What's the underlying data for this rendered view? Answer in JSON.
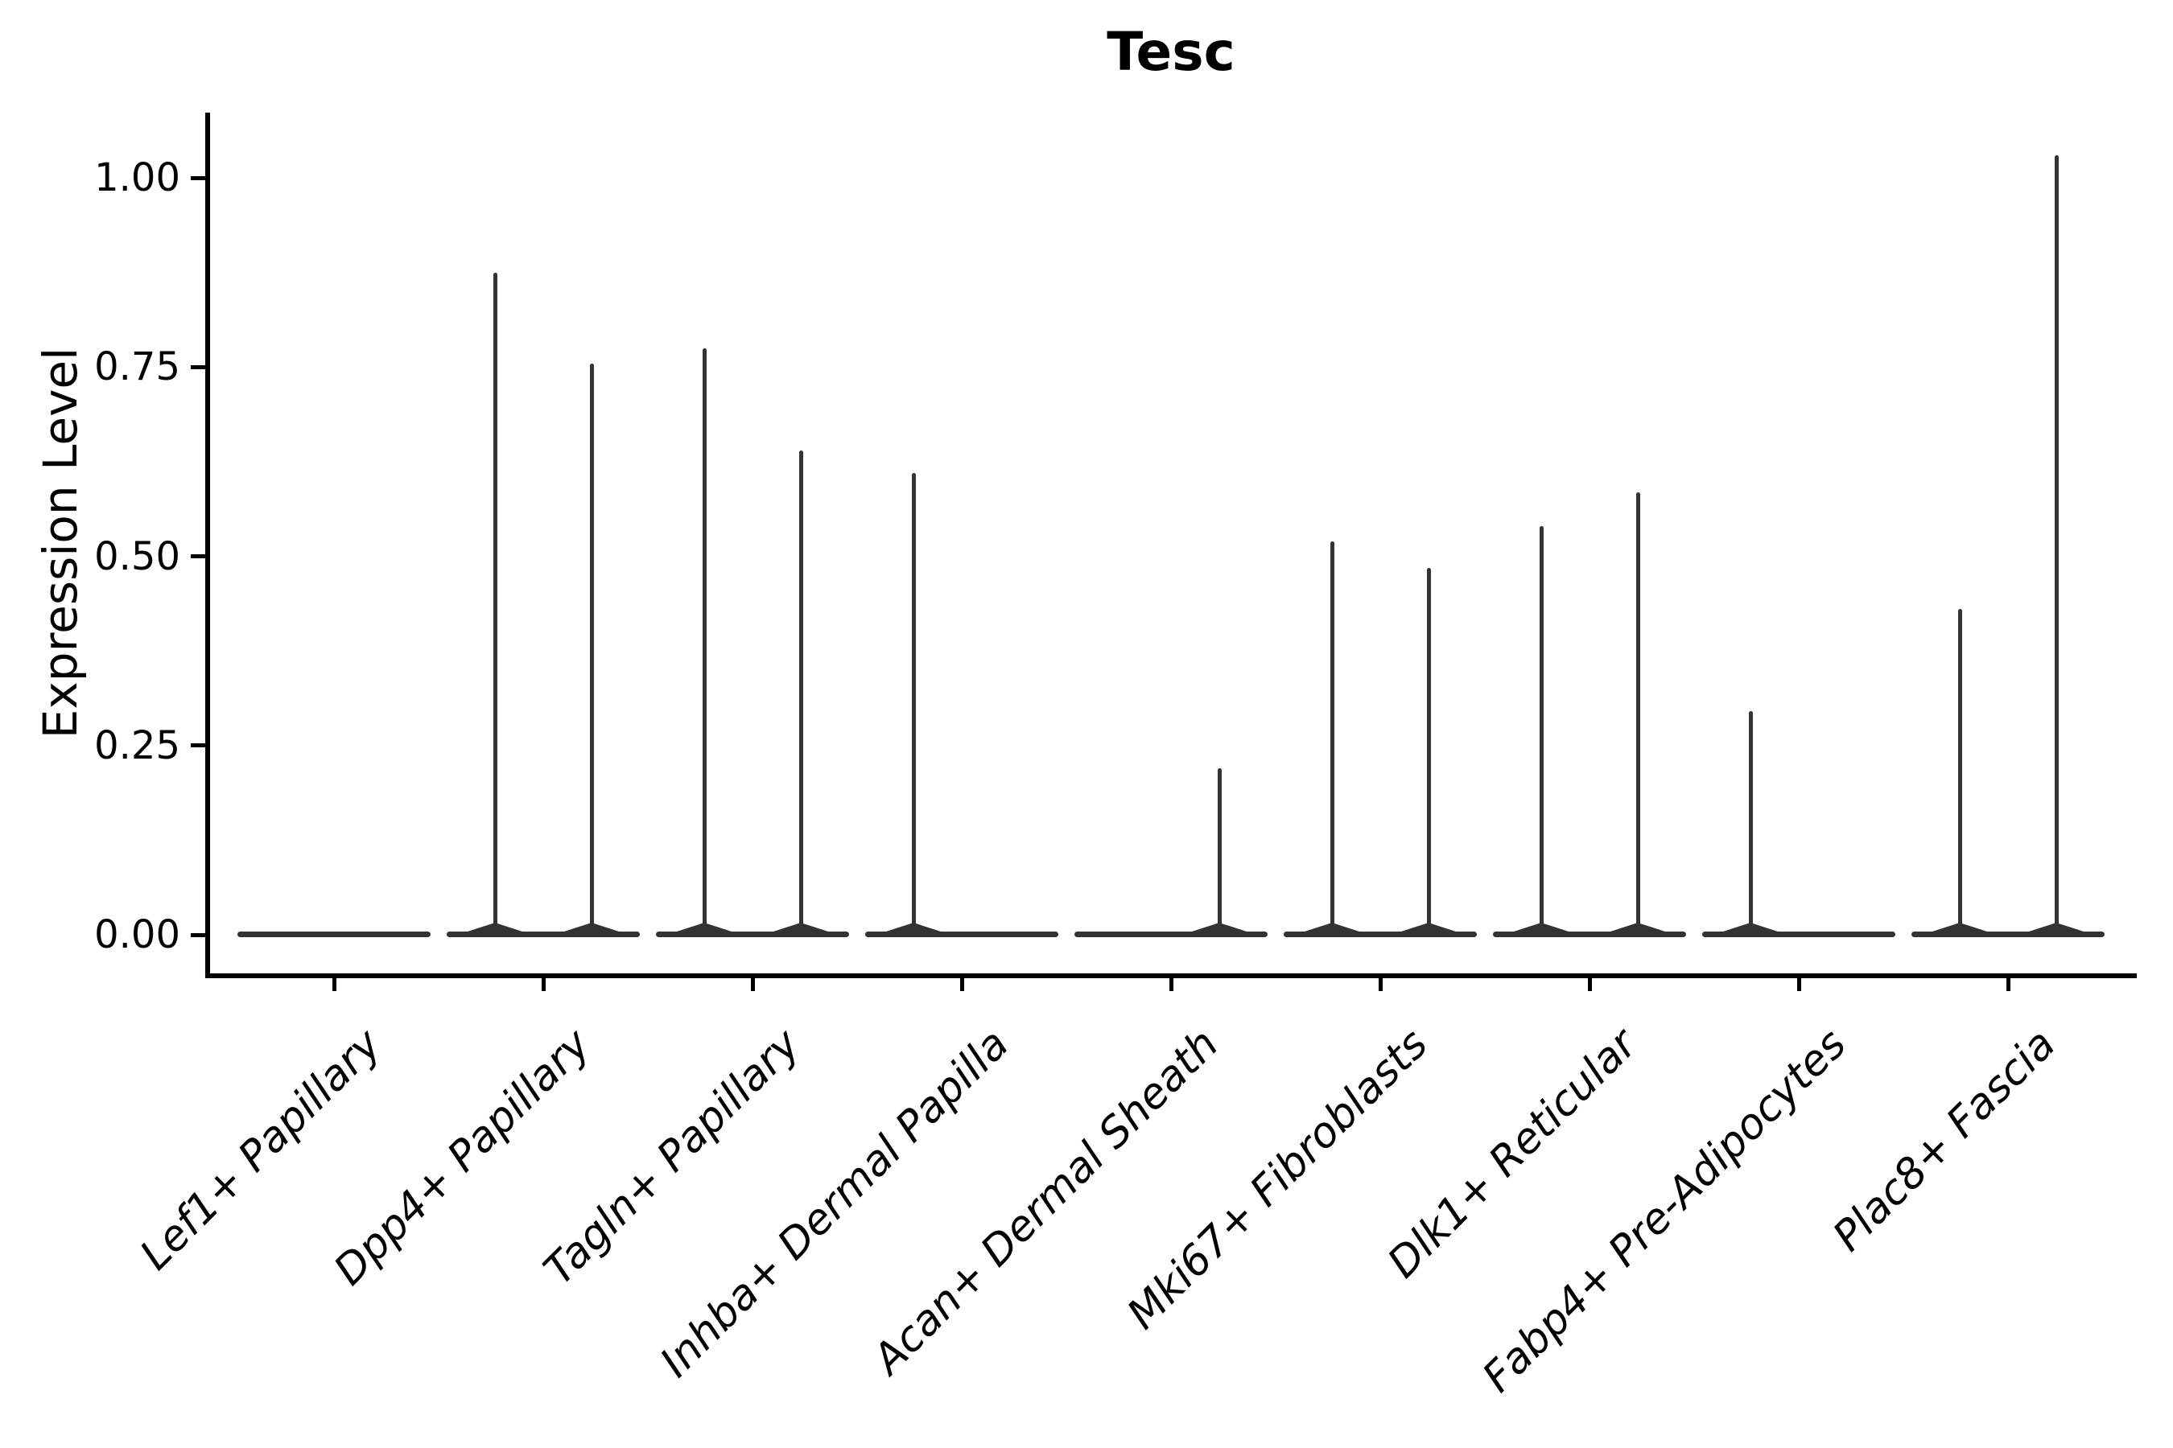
{
  "figure": {
    "title": "Tesc",
    "background_color": "#ffffff",
    "text_color": "#000000",
    "violin_color": "#333333"
  },
  "chart_data": {
    "type": "violin",
    "title": "Tesc",
    "xlabel": "",
    "ylabel": "Expression Level",
    "ylim": [
      -0.05,
      1.09
    ],
    "yticks": [
      0.0,
      0.25,
      0.5,
      0.75,
      1.0
    ],
    "ytick_labels": [
      "0.00",
      "0.25",
      "0.50",
      "0.75",
      "1.00"
    ],
    "grid": false,
    "legend": false,
    "baseline_value": 0.0,
    "categories": [
      "Lef1+ Papillary",
      "Dpp4+ Papillary",
      "Tagln+ Papillary",
      "Inhba+ Dermal Papilla",
      "Acan+ Dermal Sheath",
      "Mki67+ Fibroblasts",
      "Dlk1+ Reticular",
      "Fabp4+ Pre-Adipocytes",
      "Plac8+ Fascia"
    ],
    "series": [
      {
        "name": "left-violin",
        "max_values": [
          0,
          0.875,
          0.775,
          0.61,
          0,
          0.52,
          0.54,
          0.295,
          0.43
        ]
      },
      {
        "name": "right-violin",
        "max_values": [
          0,
          0.755,
          0.64,
          0,
          0.22,
          0.485,
          0.585,
          0,
          1.03
        ]
      }
    ],
    "note_all_violins_have_dense_mass_at_zero": true
  }
}
